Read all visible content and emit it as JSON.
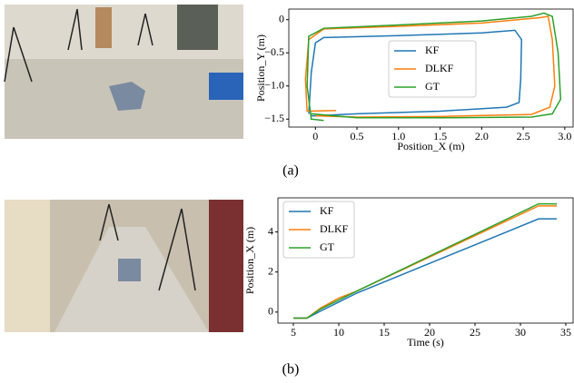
{
  "captions": [
    "(a)",
    "(b)"
  ],
  "chart_data": [
    {
      "type": "line",
      "xlabel": "Position_X (m)",
      "ylabel": "Position_Y (m)",
      "xlim": [
        -0.32,
        3.1
      ],
      "ylim": [
        -1.62,
        0.16
      ],
      "xticks": [
        0,
        0.5,
        {
          "value": 1,
          "label": "1.0"
        },
        1.5,
        {
          "value": 2,
          "label": "2.0"
        },
        2.5,
        {
          "value": 3,
          "label": "3.0"
        }
      ],
      "yticks": [
        0,
        {
          "value": -0.5,
          "label": "−0.5"
        },
        {
          "value": -1,
          "label": "−1.0"
        },
        {
          "value": -1.5,
          "label": "−1.5"
        }
      ],
      "legend": "center",
      "series": [
        {
          "name": "KF",
          "color": "#1f77b4",
          "x": [
            -0.08,
            -0.05,
            0.0,
            0.1,
            1.0,
            2.0,
            2.4,
            2.48,
            2.47,
            2.45,
            2.3,
            1.5,
            0.5,
            0.0,
            -0.05
          ],
          "values": [
            -1.42,
            -0.8,
            -0.35,
            -0.27,
            -0.24,
            -0.2,
            -0.16,
            -0.3,
            -0.9,
            -1.25,
            -1.32,
            -1.38,
            -1.42,
            -1.45,
            -1.45
          ]
        },
        {
          "name": "DLKF",
          "color": "#ff7f0e",
          "x": [
            0.25,
            -0.1,
            -0.12,
            -0.08,
            0.1,
            1.0,
            2.0,
            2.7,
            2.8,
            2.85,
            2.88,
            2.82,
            2.6,
            1.5,
            0.5,
            0.0
          ],
          "values": [
            -1.37,
            -1.38,
            -0.9,
            -0.3,
            -0.14,
            -0.1,
            -0.05,
            0.03,
            0.05,
            -0.3,
            -1.0,
            -1.32,
            -1.43,
            -1.46,
            -1.47,
            -1.45
          ]
        },
        {
          "name": "GT",
          "color": "#2ca02c",
          "x": [
            0.1,
            -0.05,
            -0.1,
            -0.08,
            0.1,
            1.0,
            2.0,
            2.6,
            2.75,
            2.85,
            2.92,
            2.95,
            2.85,
            2.6,
            1.5,
            0.5,
            -0.05
          ],
          "values": [
            -1.52,
            -1.5,
            -1.0,
            -0.25,
            -0.13,
            -0.08,
            -0.02,
            0.05,
            0.1,
            0.05,
            -0.5,
            -1.2,
            -1.42,
            -1.47,
            -1.48,
            -1.48,
            -1.42
          ]
        }
      ]
    },
    {
      "type": "line",
      "xlabel": "Time (s)",
      "ylabel": "Position_X (m)",
      "xlim": [
        3.3,
        35.8
      ],
      "ylim": [
        -0.55,
        5.7
      ],
      "xticks": [
        5,
        10,
        15,
        20,
        25,
        30,
        35
      ],
      "yticks": [
        0,
        2,
        4
      ],
      "legend": "upper left",
      "x": [
        5,
        6.5,
        8,
        10,
        12,
        32,
        34
      ],
      "series": [
        {
          "name": "KF",
          "color": "#1f77b4",
          "values": [
            -0.3,
            -0.3,
            0.05,
            0.5,
            0.95,
            4.65,
            4.65
          ]
        },
        {
          "name": "DLKF",
          "color": "#ff7f0e",
          "values": [
            -0.3,
            -0.3,
            0.2,
            0.7,
            1.05,
            5.3,
            5.3
          ]
        },
        {
          "name": "GT",
          "color": "#2ca02c",
          "values": [
            -0.3,
            -0.3,
            0.15,
            0.6,
            1.05,
            5.4,
            5.4
          ]
        }
      ]
    }
  ]
}
